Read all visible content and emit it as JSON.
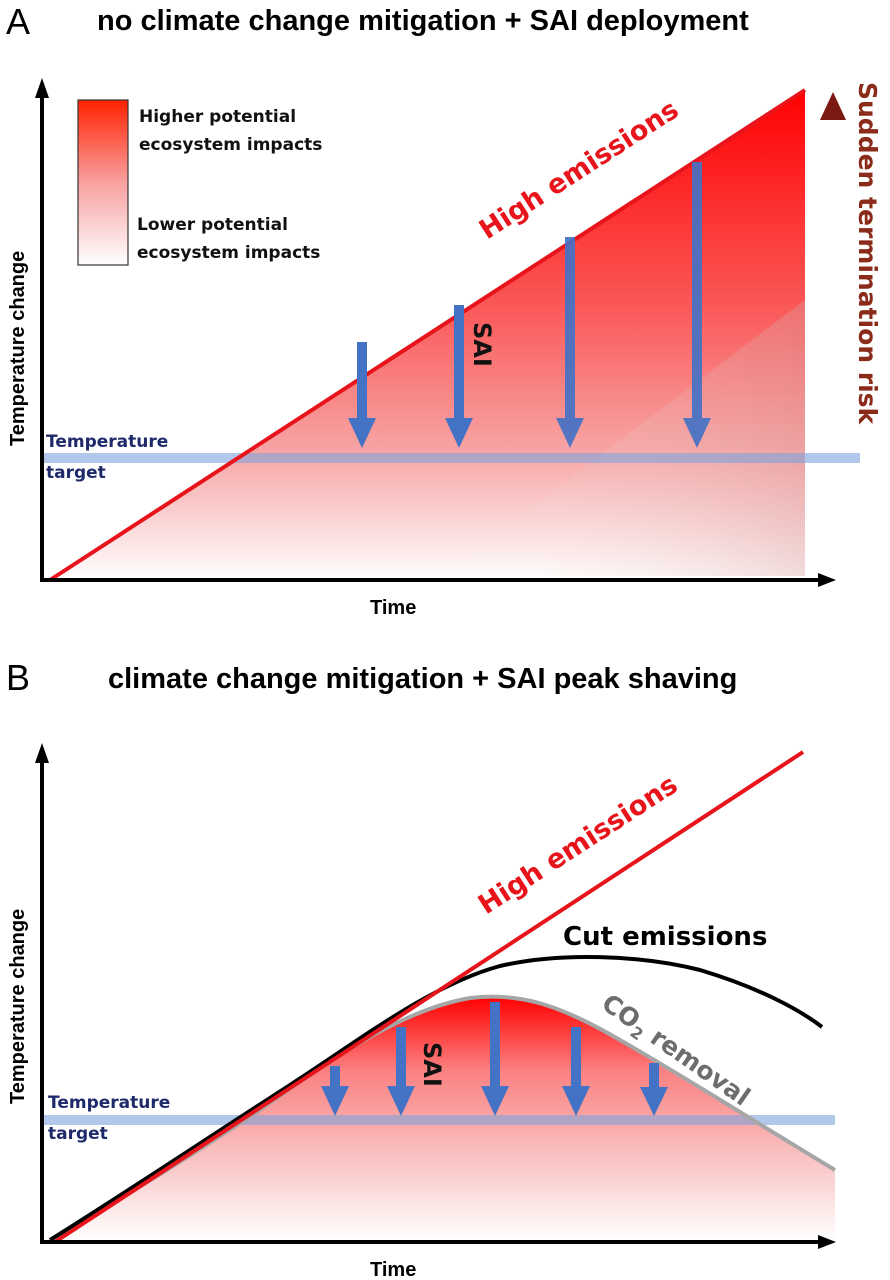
{
  "panels": [
    {
      "letter": "A",
      "title": "no climate change mitigation + SAI deployment",
      "y_axis_label": "Temperature change",
      "x_axis_label": "Time",
      "legend": {
        "high_line1": "Higher potential",
        "high_line2": "ecosystem impacts",
        "low_line1": "Lower potential",
        "low_line2": "ecosystem impacts"
      },
      "target_label_line1": "Temperature",
      "target_label_line2": "target",
      "high_emissions_label": "High emissions",
      "sai_label": "SAI",
      "termination_label": "Sudden termination risk"
    },
    {
      "letter": "B",
      "title": "climate change mitigation + SAI peak shaving",
      "y_axis_label": "Temperature change",
      "x_axis_label": "Time",
      "target_label_line1": "Temperature",
      "target_label_line2": "target",
      "high_emissions_label": "High emissions",
      "cut_emissions_label": "Cut emissions",
      "co2_label_prefix": "CO",
      "co2_label_sub": "2",
      "co2_label_suffix": " removal",
      "sai_label": "SAI"
    }
  ],
  "colors": {
    "high_emissions": "#e8141b",
    "cut_emissions": "#000000",
    "co2_removal": "#a6a6a6",
    "sai_arrow": "#4472c4",
    "target_band": "#9fb9e3",
    "target_text": "#1f2a6b",
    "termination_dark": "#7b1a12",
    "termination_light": "#ff2a12",
    "impact_high": "#ff0000",
    "impact_low": "#ffffff",
    "co2_text": "#6d6d6d"
  }
}
